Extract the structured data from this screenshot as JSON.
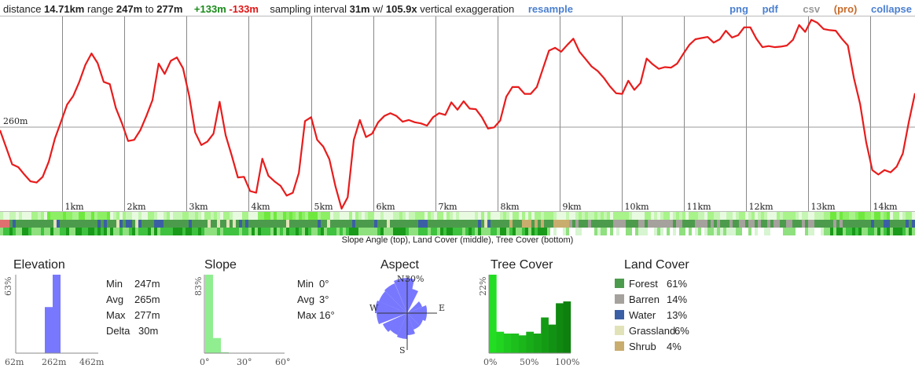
{
  "header": {
    "distance_label": "distance",
    "distance_value": "14.71km",
    "range_label": "range",
    "range_min": "247m",
    "range_to": "to",
    "range_max": "277m",
    "gain": "+133m",
    "loss": "-133m",
    "sampling_label": "sampling interval",
    "sampling_value": "31m",
    "with_label": "w/",
    "exaggeration_value": "105.9x",
    "exaggeration_label": "vertical exaggeration",
    "resample": "resample",
    "png": "png",
    "pdf": "pdf",
    "csv": "csv",
    "pro": "(pro)",
    "collapse": "collapse"
  },
  "profile": {
    "ref_label": "260m",
    "km_labels": [
      "1km",
      "2km",
      "3km",
      "4km",
      "5km",
      "6km",
      "7km",
      "8km",
      "9km",
      "10km",
      "11km",
      "12km",
      "13km",
      "14km"
    ],
    "line_color": "#e81c1c",
    "elevation_m": [
      258.5,
      255.5,
      252.5,
      252,
      250.7,
      249.5,
      249.3,
      250.3,
      253,
      257,
      260,
      263,
      264.5,
      267,
      270,
      272,
      270.3,
      267,
      266.6,
      262.4,
      259.7,
      256.6,
      256.8,
      258.5,
      261,
      263.8,
      270.2,
      268.4,
      270.7,
      271.3,
      269.4,
      264.6,
      258.1,
      255.9,
      256.5,
      257.9,
      263.5,
      257.6,
      254,
      250.2,
      250.3,
      247.8,
      247.5,
      253.5,
      250.5,
      249.5,
      248.7,
      247,
      247.5,
      251,
      260.1,
      260.8,
      256.8,
      255.6,
      253.4,
      248.6,
      244.7,
      246.7,
      256.8,
      260.3,
      257.3,
      257.9,
      259.9,
      261,
      261.5,
      261,
      260,
      260.3,
      259.9,
      259.7,
      259.3,
      260.8,
      261.5,
      261.2,
      263.4,
      262.1,
      263.6,
      262.3,
      262.2,
      260.8,
      258.8,
      259,
      260.2,
      264.4,
      266.1,
      266.1,
      264.9,
      264.9,
      266.1,
      269.3,
      272.5,
      273,
      272.3,
      273.5,
      274.6,
      272.3,
      271,
      269.7,
      268.9,
      267.7,
      266.2,
      265,
      264.9,
      267.2,
      265.6,
      266.8,
      271.1,
      270.1,
      269.3,
      269.6,
      269.5,
      270.2,
      271.9,
      273.5,
      274.5,
      274.7,
      274.9,
      273.9,
      274.5,
      276,
      274.8,
      275.2,
      276.6,
      276.6,
      274.6,
      273.1,
      273.3,
      273.1,
      273.2,
      273.4,
      274.4,
      277,
      275.8,
      277.9,
      277.4,
      276.3,
      276.1,
      276,
      274.6,
      273.4,
      267.6,
      263.1,
      256.4,
      251.5,
      250.7,
      251.5,
      251.1,
      252.1,
      254.4,
      260,
      265
    ],
    "y_min": 244,
    "y_max": 278.5
  },
  "bands": {
    "caption": "Slope Angle (top), Land Cover (middle), Tree Cover (bottom)",
    "slope_colors": [
      "#e8fbe0",
      "#c6f6b3",
      "#a8f38a",
      "#8cef64",
      "#6fe83e"
    ],
    "land_cover_colors": {
      "forest": "#4c9b4c",
      "barren": "#a5a19c",
      "water": "#3b5fa5",
      "grassland": "#e2e2b8",
      "shrub": "#c9ad6e"
    },
    "tree_colors": [
      "#ffffff",
      "#d6f5d0",
      "#8fe07e",
      "#3fc23f",
      "#1a9a1a"
    ]
  },
  "elevation": {
    "title": "Elevation",
    "y_max_label": "63%",
    "x_labels": [
      "62m",
      "262m",
      "462m"
    ],
    "stats": [
      {
        "label": "Min",
        "value": "247m"
      },
      {
        "label": "Avg",
        "value": "265m"
      },
      {
        "label": "Max",
        "value": "277m"
      },
      {
        "label": "Delta",
        "value": "30m"
      }
    ],
    "bar_color": "#7878ff",
    "histogram_pct": [
      37,
      63
    ]
  },
  "slope": {
    "title": "Slope",
    "y_max_label": "83%",
    "x_labels": [
      "0°",
      "30°",
      "60°"
    ],
    "stats": [
      {
        "label": "Min",
        "value": "0°"
      },
      {
        "label": "Avg",
        "value": "3°"
      },
      {
        "label": "Max",
        "value": "16°"
      }
    ],
    "bar_color": "#90ee90",
    "histogram_pct": [
      83,
      16,
      1
    ]
  },
  "aspect": {
    "title": "Aspect",
    "n": "N",
    "s": "S",
    "e": "E",
    "w": "W",
    "pct_label": "30%",
    "color": "#7878ff"
  },
  "tree_cover": {
    "title": "Tree Cover",
    "y_max_label": "22%",
    "x_labels": [
      "0%",
      "50%",
      "100%"
    ],
    "histogram_pct": [
      22,
      6,
      5.5,
      5.5,
      5,
      6,
      5.5,
      10,
      8,
      14,
      14.5
    ],
    "colors": [
      "#22dd22",
      "#20d420",
      "#1ec81e",
      "#1cbf1c",
      "#1ab61a",
      "#18ad18",
      "#16a416",
      "#149b14",
      "#129212",
      "#108910",
      "#0e800e"
    ]
  },
  "land_cover": {
    "title": "Land Cover",
    "items": [
      {
        "name": "Forest",
        "pct": "61%",
        "color": "#4c9b4c"
      },
      {
        "name": "Barren",
        "pct": "14%",
        "color": "#a5a19c"
      },
      {
        "name": "Water",
        "pct": "13%",
        "color": "#3b5fa5"
      },
      {
        "name": "Grassland",
        "pct": "6%",
        "color": "#e2e2b8"
      },
      {
        "name": "Shrub",
        "pct": "4%",
        "color": "#c9ad6e"
      }
    ]
  }
}
